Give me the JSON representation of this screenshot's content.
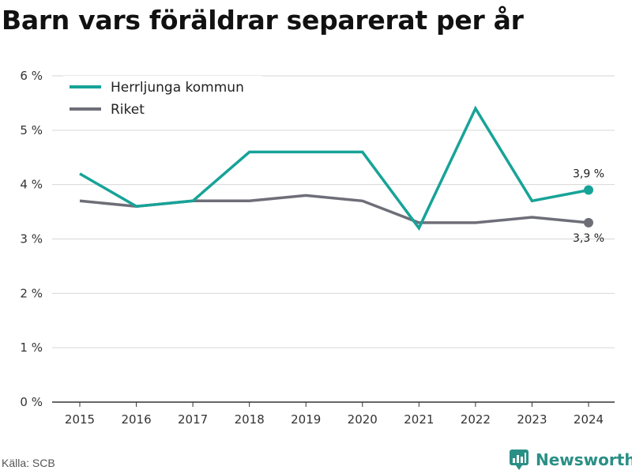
{
  "title": "Barn vars föräldrar separerat per år",
  "footer": {
    "source": "Källa: SCB",
    "brand": "Newsworthy",
    "brand_icon": "newsworthy-logo-icon"
  },
  "colors": {
    "herrljunga": "#17a398",
    "riket": "#6e6e78",
    "grid": "#d6d6d6",
    "axis": "#333333",
    "brand": "#2a8f85"
  },
  "chart_data": {
    "type": "line",
    "title": "Barn vars föräldrar separerat per år",
    "x": [
      "2015",
      "2016",
      "2017",
      "2018",
      "2019",
      "2020",
      "2021",
      "2022",
      "2023",
      "2024"
    ],
    "series": [
      {
        "name": "Herrljunga kommun",
        "color": "#17a398",
        "values": [
          4.2,
          3.6,
          3.7,
          4.6,
          4.6,
          4.6,
          3.2,
          5.4,
          3.7,
          3.9
        ]
      },
      {
        "name": "Riket",
        "color": "#6e6e78",
        "values": [
          3.7,
          3.6,
          3.7,
          3.7,
          3.8,
          3.7,
          3.3,
          3.3,
          3.4,
          3.3
        ]
      }
    ],
    "ylim": [
      0,
      6
    ],
    "yticks": [
      "0 %",
      "1 %",
      "2 %",
      "3 %",
      "4 %",
      "5 %",
      "6 %"
    ],
    "end_labels": [
      "3,9 %",
      "3,3 %"
    ],
    "grid": true,
    "legend": "top-left",
    "xlabel": "",
    "ylabel": ""
  }
}
